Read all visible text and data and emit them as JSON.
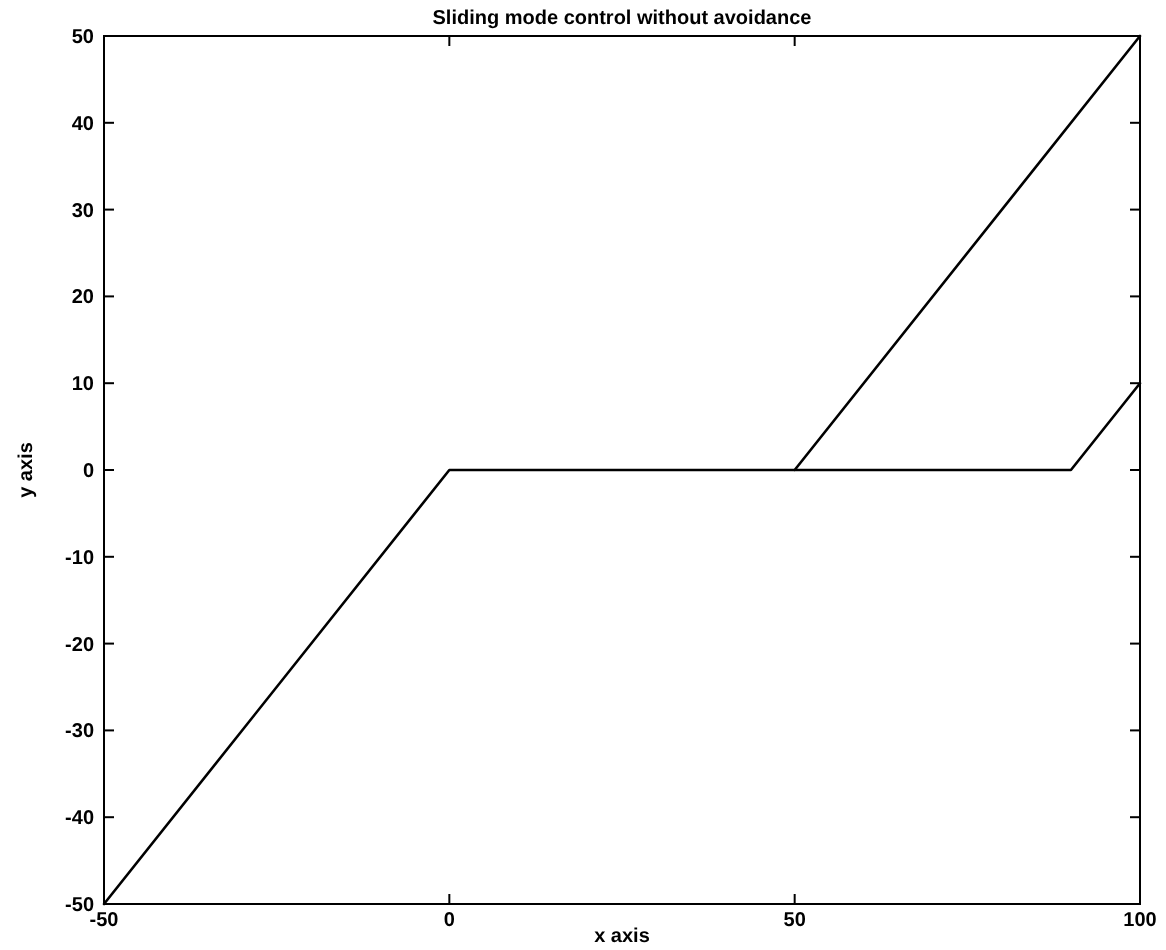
{
  "chart_data": {
    "type": "line",
    "title": "Sliding mode control without avoidance",
    "xlabel": "x axis",
    "ylabel": "y axis",
    "series": [
      {
        "color": "#000000",
        "x": [
          -50,
          0,
          50,
          100
        ],
        "values": [
          -50,
          0,
          0,
          50
        ]
      },
      {
        "color": "#000000",
        "x": [
          50,
          90,
          100
        ],
        "values": [
          0,
          0,
          10
        ]
      }
    ],
    "xlim": [
      -50,
      100
    ],
    "xticks": [
      -50,
      0,
      50,
      100
    ],
    "ylim": [
      -50,
      50
    ],
    "yticks": [
      -50,
      -40,
      -30,
      -20,
      -10,
      0,
      10,
      20,
      30,
      40,
      50
    ],
    "grid": false,
    "line_style": "solid"
  }
}
